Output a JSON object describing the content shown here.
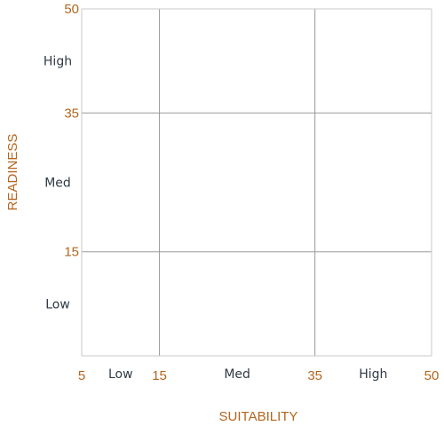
{
  "chart_data": {
    "type": "scatter",
    "title": "",
    "xlabel": "SUITABILITY",
    "ylabel": "READINESS",
    "xlim": [
      5,
      50
    ],
    "ylim": [
      0,
      50
    ],
    "x_ticks": [
      {
        "value": 5,
        "label": "5"
      },
      {
        "value": 15,
        "label": "15"
      },
      {
        "value": 35,
        "label": "35"
      },
      {
        "value": 50,
        "label": "50"
      }
    ],
    "y_ticks": [
      {
        "value": 15,
        "label": "15"
      },
      {
        "value": 35,
        "label": "35"
      },
      {
        "value": 50,
        "label": "50"
      }
    ],
    "x_gridlines": [
      15,
      35
    ],
    "y_gridlines": [
      15,
      35
    ],
    "x_bands": [
      {
        "label": "Low",
        "from": 5,
        "to": 15
      },
      {
        "label": "Med",
        "from": 15,
        "to": 35
      },
      {
        "label": "High",
        "from": 35,
        "to": 50
      }
    ],
    "y_bands": [
      {
        "label": "Low",
        "from": 0,
        "to": 15
      },
      {
        "label": "Med",
        "from": 15,
        "to": 35
      },
      {
        "label": "High",
        "from": 35,
        "to": 50
      }
    ],
    "series": [],
    "grid": true
  },
  "colors": {
    "axis_text": "#b5651d",
    "band_text": "#2f3a45",
    "grid": "#9a9a9a",
    "frame": "#c8c8c8",
    "background": "#ffffff"
  }
}
